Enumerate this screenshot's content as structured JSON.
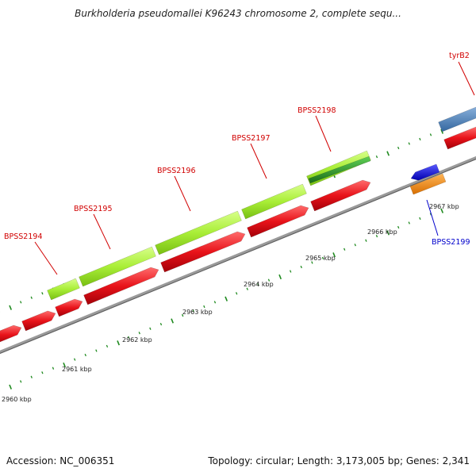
{
  "title": "Burkholderia pseudomallei K96243 chromosome 2, complete sequ...",
  "footer": {
    "accession": "Accession: NC_006351",
    "summary": "Topology: circular; Length: 3,173,005 bp; Genes: 2,341"
  },
  "colors": {
    "cds_forward": "#e8131a",
    "gene_highlight": "#a9ee37",
    "gene_dark": "#2a8f27",
    "cds_reverse_blue": "#1010e8",
    "cds_reverse_orange": "#f48a0c",
    "gene_steelblue": "#4f86c2",
    "backbone": "#8a8a8a",
    "tick": "#1f8a1f",
    "label_red": "#d10000",
    "label_blue": "#0000cc"
  },
  "kbp_labels": [
    "2960 kbp",
    "2961 kbp",
    "2962 kbp",
    "2963 kbp",
    "2964 kbp",
    "2965 kbp",
    "2966 kbp",
    "2967 kbp"
  ],
  "gene_labels": [
    {
      "name": "BPSS2194",
      "color": "red"
    },
    {
      "name": "BPSS2195",
      "color": "red"
    },
    {
      "name": "BPSS2196",
      "color": "red"
    },
    {
      "name": "BPSS2197",
      "color": "red"
    },
    {
      "name": "BPSS2198",
      "color": "red"
    },
    {
      "name": "tyrB2",
      "color": "red"
    },
    {
      "name": "BPSS2199",
      "color": "blue"
    }
  ]
}
